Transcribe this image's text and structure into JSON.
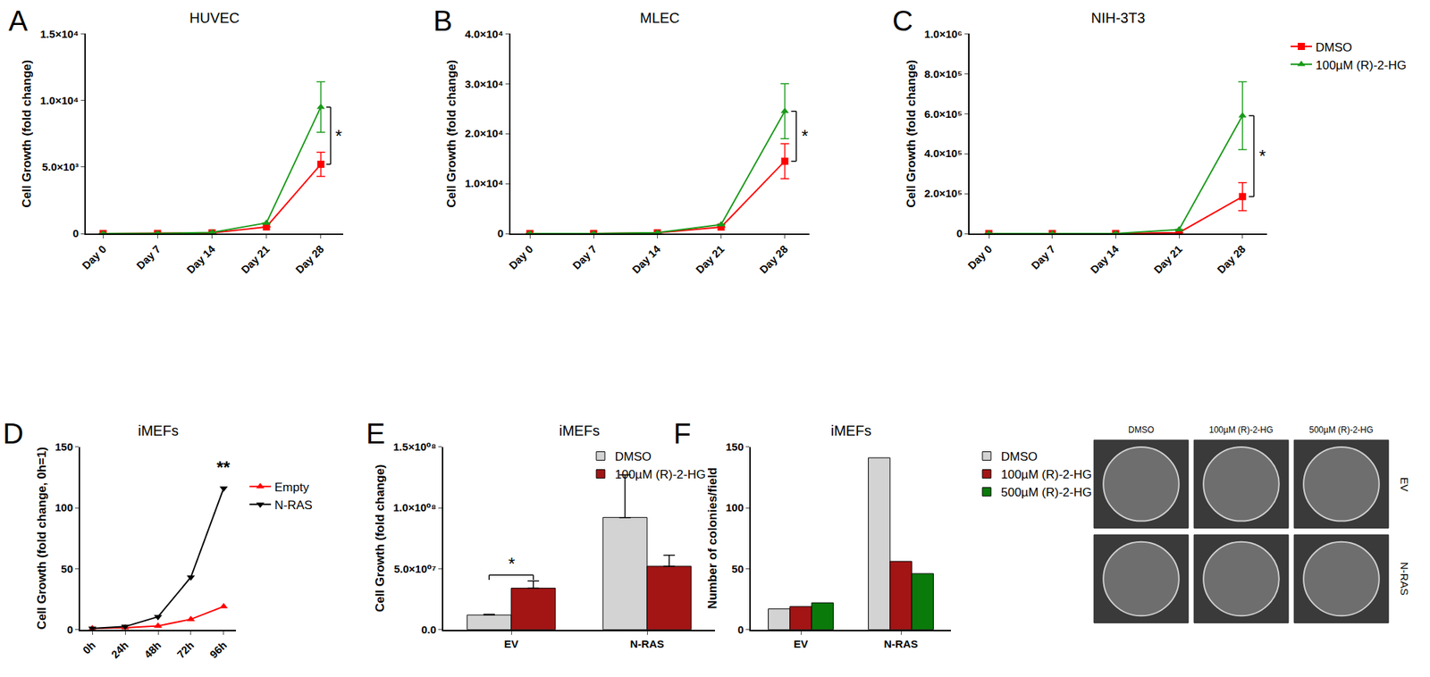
{
  "chart_data": [
    {
      "panel": "A",
      "type": "line",
      "title": "HUVEC",
      "categories": [
        "Day 0",
        "Day 7",
        "Day 14",
        "Day 21",
        "Day 28"
      ],
      "y_label": "Cell Growth (fold change)",
      "ylim": [
        0,
        15000
      ],
      "yticks": [
        0,
        {
          "value": 5000,
          "label": "5.0×10³"
        },
        {
          "value": 10000,
          "label": "1.0×10⁴"
        },
        {
          "value": 15000,
          "label": "1.5×10⁴"
        }
      ],
      "series": [
        {
          "name": "DMSO",
          "color": "#ff0000",
          "marker": "square",
          "values": [
            1,
            10,
            50,
            500,
            5200
          ],
          "errors": [
            0,
            0,
            0,
            0,
            900
          ]
        },
        {
          "name": "100µM (R)-2-HG",
          "color": "#1a9a1a",
          "marker": "triangle-up",
          "values": [
            1,
            10,
            80,
            800,
            9500
          ],
          "errors": [
            0,
            0,
            0,
            0,
            1900
          ]
        }
      ],
      "significance": [
        {
          "category": "Day 28",
          "between": [
            "DMSO",
            "100µM (R)-2-HG"
          ],
          "text": "*"
        }
      ]
    },
    {
      "panel": "B",
      "type": "line",
      "title": "MLEC",
      "categories": [
        "Day 0",
        "Day 7",
        "Day 14",
        "Day 21",
        "Day 28"
      ],
      "y_label": "Cell Growth (fold change)",
      "ylim": [
        0,
        40000
      ],
      "yticks": [
        0,
        {
          "value": 10000,
          "label": "1.0×10⁴"
        },
        {
          "value": 20000,
          "label": "2.0×10⁴"
        },
        {
          "value": 30000,
          "label": "3.0×10⁴"
        },
        {
          "value": 40000,
          "label": "4.0×10⁴"
        }
      ],
      "series": [
        {
          "name": "DMSO",
          "color": "#ff0000",
          "marker": "square",
          "values": [
            1,
            15,
            150,
            1300,
            14500
          ],
          "errors": [
            0,
            0,
            0,
            0,
            3500
          ]
        },
        {
          "name": "100µM (R)-2-HG",
          "color": "#1a9a1a",
          "marker": "triangle-up",
          "values": [
            1,
            15,
            180,
            1800,
            24500
          ],
          "errors": [
            0,
            0,
            0,
            0,
            5500
          ]
        }
      ],
      "significance": [
        {
          "category": "Day 28",
          "between": [
            "DMSO",
            "100µM (R)-2-HG"
          ],
          "text": "*"
        }
      ]
    },
    {
      "panel": "C",
      "type": "line",
      "title": "NIH-3T3",
      "categories": [
        "Day 0",
        "Day 7",
        "Day 14",
        "Day 21",
        "Day 28"
      ],
      "y_label": "Cell Growth (fold change)",
      "ylim": [
        0,
        1000000
      ],
      "yticks": [
        0,
        {
          "value": 200000,
          "label": "2.0×10⁵"
        },
        {
          "value": 400000,
          "label": "4.0×10⁵"
        },
        {
          "value": 600000,
          "label": "6.0×10⁵"
        },
        {
          "value": 800000,
          "label": "8.0×10⁵"
        },
        {
          "value": 1000000,
          "label": "1.0×10⁶"
        }
      ],
      "legend": "right",
      "series": [
        {
          "name": "DMSO",
          "color": "#ff0000",
          "marker": "square",
          "values": [
            1,
            20,
            300,
            5000,
            185000
          ],
          "errors": [
            0,
            0,
            0,
            0,
            70000
          ]
        },
        {
          "name": "100µM (R)-2-HG",
          "color": "#1a9a1a",
          "marker": "triangle-up",
          "values": [
            1,
            25,
            500,
            20000,
            590000
          ],
          "errors": [
            0,
            0,
            0,
            0,
            170000
          ]
        }
      ],
      "significance": [
        {
          "category": "Day 28",
          "between": [
            "DMSO",
            "100µM (R)-2-HG"
          ],
          "text": "*"
        }
      ]
    },
    {
      "panel": "D",
      "type": "line",
      "title": "iMEFs",
      "categories": [
        "0h",
        "24h",
        "48h",
        "72h",
        "96h"
      ],
      "y_label": "Cell Growth (fold change, 0h=1)",
      "ylim": [
        0,
        150
      ],
      "yticks": [
        0,
        50,
        100,
        150
      ],
      "legend": "right",
      "series": [
        {
          "name": "Empty",
          "color": "#ff0000",
          "marker": "triangle-up",
          "values": [
            1,
            1.5,
            3,
            8.5,
            19
          ]
        },
        {
          "name": "N-RAS",
          "color": "#000000",
          "marker": "triangle-down",
          "values": [
            1,
            2.5,
            10.5,
            43,
            116
          ]
        }
      ],
      "significance": [
        {
          "category": "96h",
          "text": "**"
        }
      ]
    },
    {
      "panel": "E",
      "type": "bar",
      "title": "iMEFs",
      "categories": [
        "EV",
        "N-RAS"
      ],
      "y_label": "Cell Growth (fold change)",
      "ylim": [
        0,
        150000000
      ],
      "yticks": [
        {
          "value": 0,
          "label": "0.0"
        },
        {
          "value": 50000000,
          "label": "5.0×10⁰⁷"
        },
        {
          "value": 100000000,
          "label": "1.0×10⁰⁸"
        },
        {
          "value": 150000000,
          "label": "1.5×10⁰⁸"
        }
      ],
      "legend": "top right",
      "series": [
        {
          "name": "DMSO",
          "color": "#d3d3d3",
          "values": [
            12000000,
            92000000
          ],
          "errors": [
            500000,
            35000000
          ]
        },
        {
          "name": "100µM (R)-2-HG",
          "color": "#a31515",
          "values": [
            34000000,
            52000000
          ],
          "errors": [
            6000000,
            9000000
          ]
        }
      ],
      "significance": [
        {
          "category": "EV",
          "between": [
            "DMSO",
            "100µM (R)-2-HG"
          ],
          "text": "*"
        }
      ]
    },
    {
      "panel": "F",
      "type": "bar",
      "title": "iMEFs",
      "categories": [
        "EV",
        "N-RAS"
      ],
      "y_label": "Number of colonies/field",
      "ylim": [
        0,
        150
      ],
      "yticks": [
        0,
        50,
        100,
        150
      ],
      "legend": "right",
      "series": [
        {
          "name": "DMSO",
          "color": "#d3d3d3",
          "values": [
            17,
            141
          ]
        },
        {
          "name": "100µM (R)-2-HG",
          "color": "#a31515",
          "values": [
            19,
            56
          ]
        },
        {
          "name": "500µM (R)-2-HG",
          "color": "#0a7a0a",
          "values": [
            22,
            46
          ]
        }
      ],
      "plates": {
        "columns": [
          "DMSO",
          "100µM (R)-2-HG",
          "500µM (R)-2-HG"
        ],
        "rows": [
          "EV",
          "N-RAS"
        ]
      }
    }
  ]
}
